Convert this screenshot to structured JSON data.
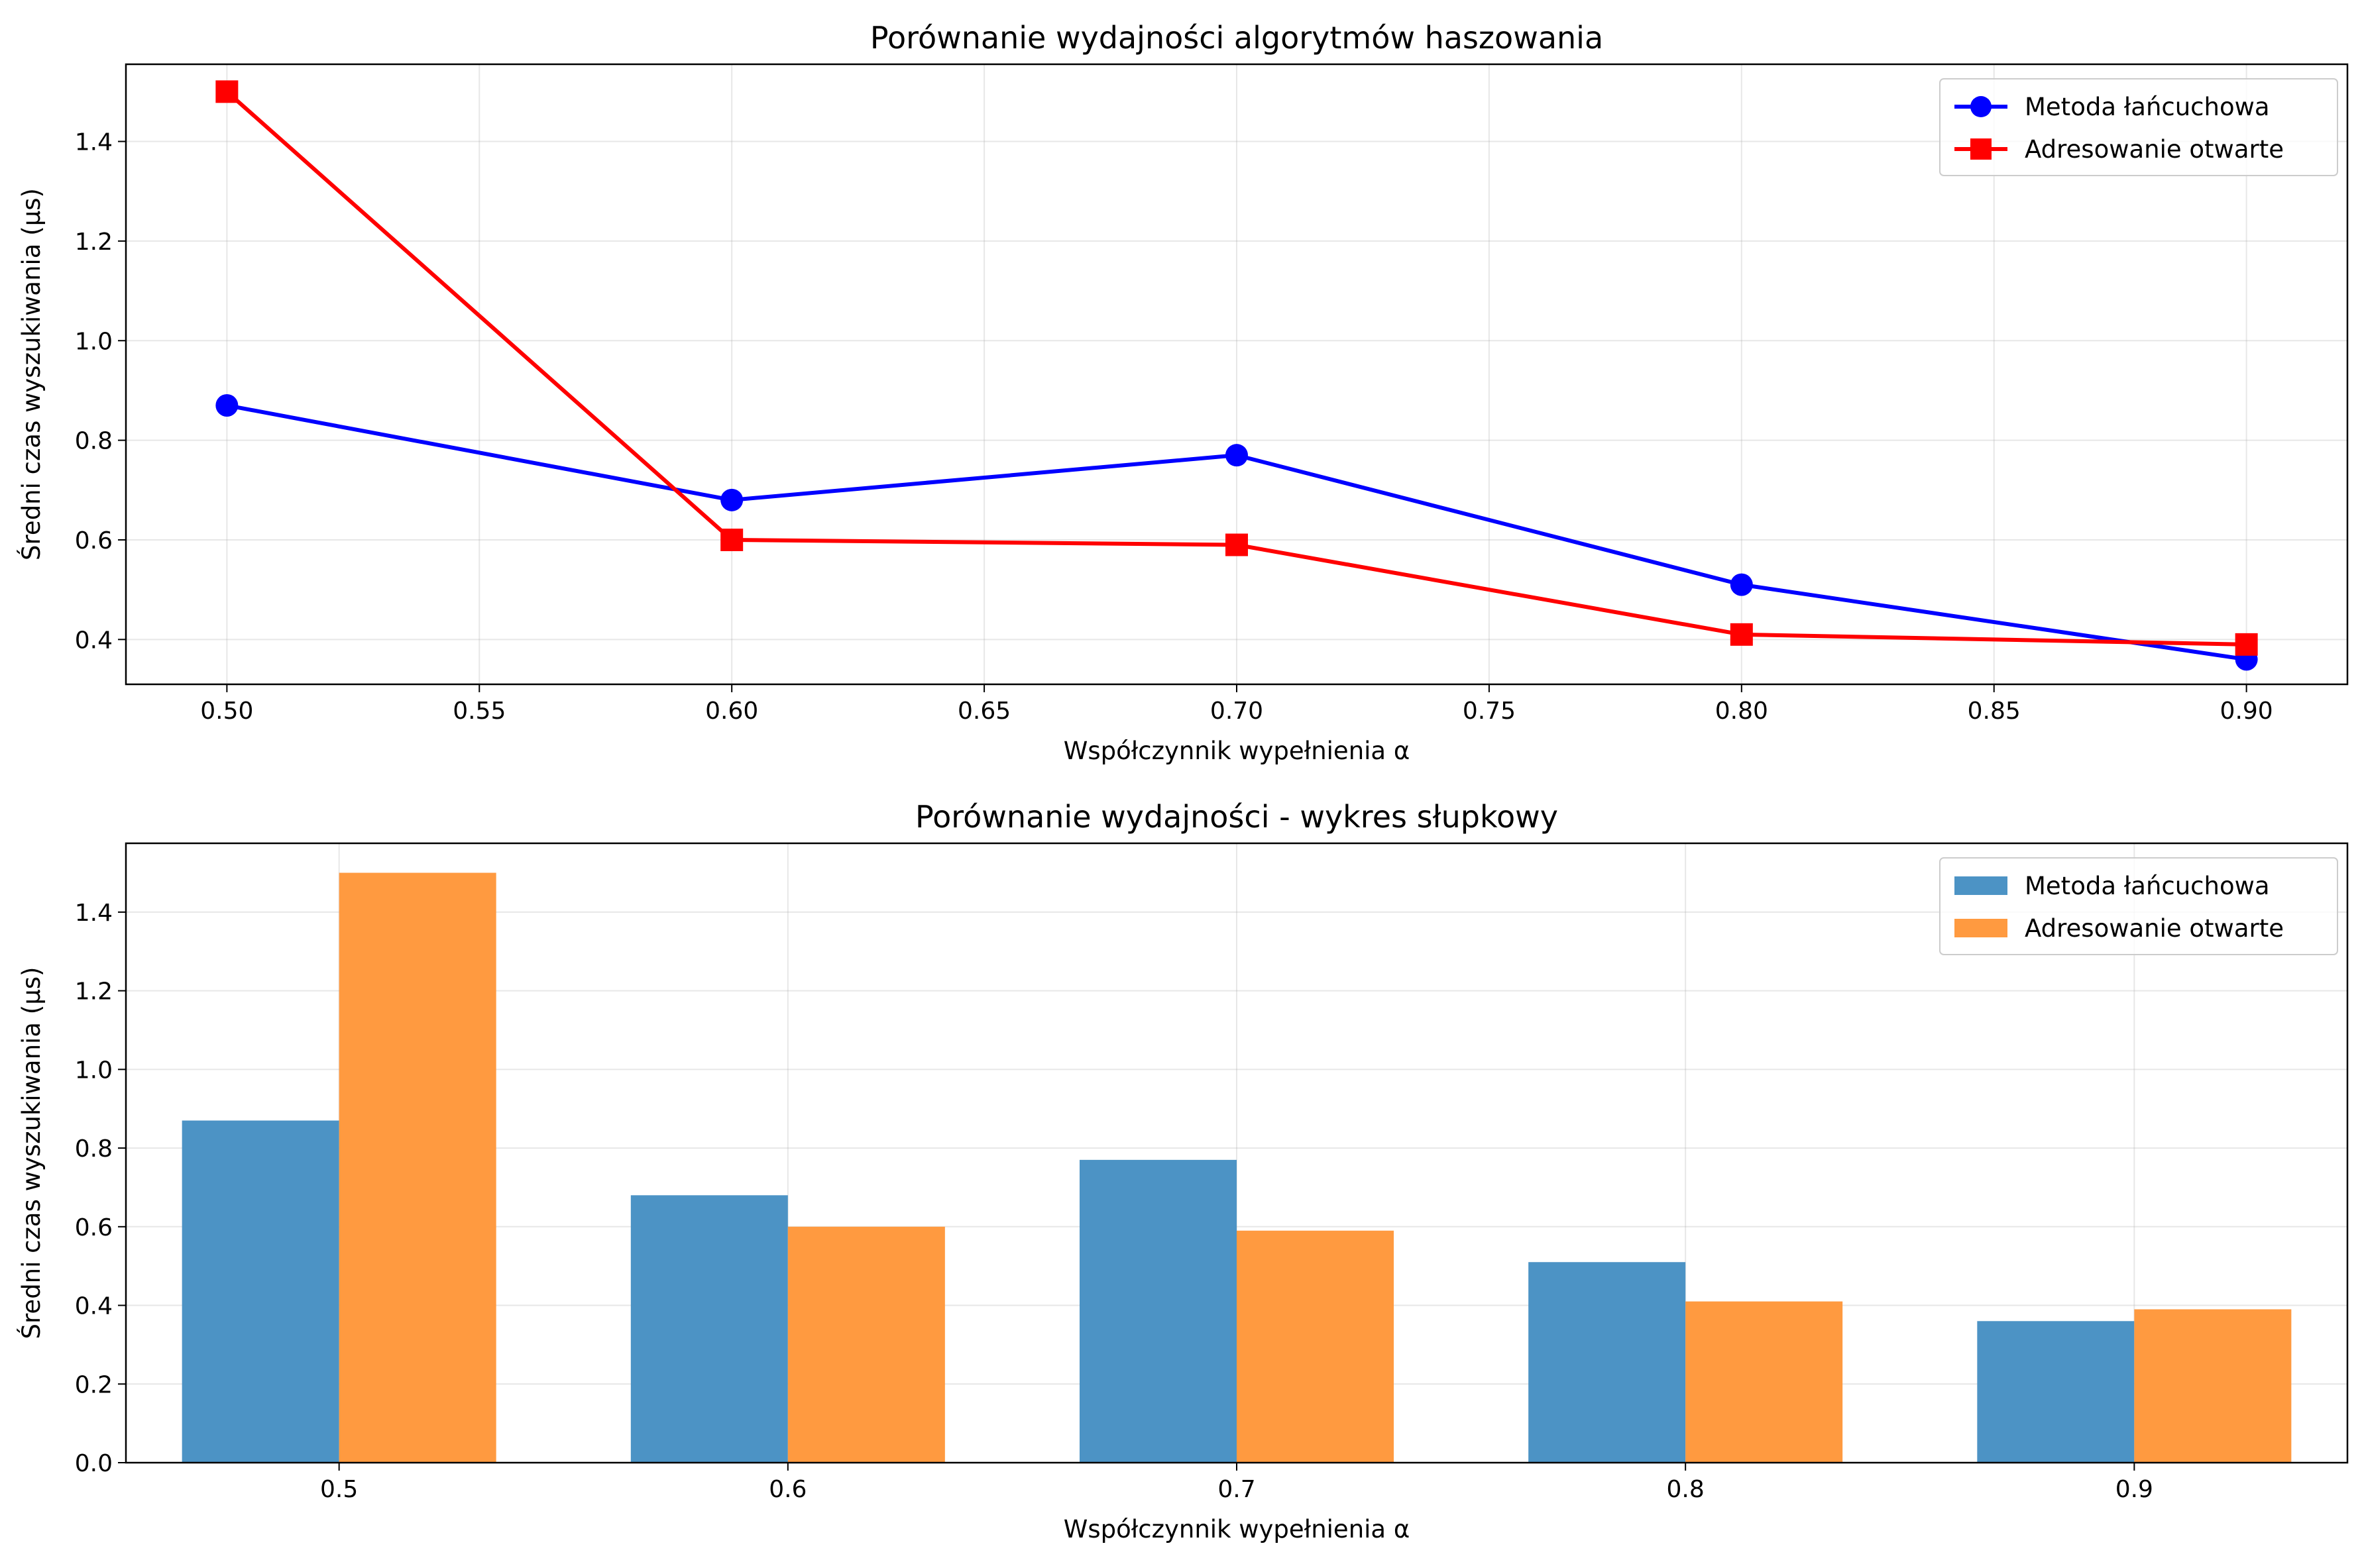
{
  "colors": {
    "line_series_1": "#0000ff",
    "line_series_2": "#ff0000",
    "bar_series_1": "#4c93c5",
    "bar_series_2": "#ff9a40"
  },
  "chart_data": [
    {
      "type": "line",
      "title": "Porównanie wydajności algorytmów haszowania",
      "xlabel": "Współczynnik wypełnienia α",
      "ylabel": "Średni czas wyszukiwania (μs)",
      "x": [
        0.5,
        0.6,
        0.7,
        0.8,
        0.9
      ],
      "xlim": [
        0.48,
        0.92
      ],
      "ylim": [
        0.31,
        1.555
      ],
      "xticks": [
        0.5,
        0.55,
        0.6,
        0.65,
        0.7,
        0.75,
        0.8,
        0.85,
        0.9
      ],
      "xtick_labels": [
        "0.50",
        "0.55",
        "0.60",
        "0.65",
        "0.70",
        "0.75",
        "0.80",
        "0.85",
        "0.90"
      ],
      "yticks": [
        0.4,
        0.6,
        0.8,
        1.0,
        1.2,
        1.4
      ],
      "ytick_labels": [
        "0.4",
        "0.6",
        "0.8",
        "1.0",
        "1.2",
        "1.4"
      ],
      "grid": true,
      "legend_position": "top-right",
      "series": [
        {
          "name": "Metoda łańcuchowa",
          "marker": "circle",
          "color": "#0000ff",
          "values": [
            0.87,
            0.68,
            0.77,
            0.51,
            0.36
          ]
        },
        {
          "name": "Adresowanie otwarte",
          "marker": "square",
          "color": "#ff0000",
          "values": [
            1.5,
            0.6,
            0.59,
            0.41,
            0.39
          ]
        }
      ]
    },
    {
      "type": "bar",
      "title": "Porównanie wydajności - wykres słupkowy",
      "xlabel": "Współczynnik wypełnienia α",
      "ylabel": "Średni czas wyszukiwania (μs)",
      "categories": [
        "0.5",
        "0.6",
        "0.7",
        "0.8",
        "0.9"
      ],
      "ylim": [
        0,
        1.575
      ],
      "yticks": [
        0,
        0.2,
        0.4,
        0.6,
        0.8,
        1.0,
        1.2,
        1.4
      ],
      "ytick_labels": [
        "0.0",
        "0.2",
        "0.4",
        "0.6",
        "0.8",
        "1.0",
        "1.2",
        "1.4"
      ],
      "grid": true,
      "legend_position": "top-right",
      "series": [
        {
          "name": "Metoda łańcuchowa",
          "color": "#4c93c5",
          "values": [
            0.87,
            0.68,
            0.77,
            0.51,
            0.36
          ]
        },
        {
          "name": "Adresowanie otwarte",
          "color": "#ff9a40",
          "values": [
            1.5,
            0.6,
            0.59,
            0.41,
            0.39
          ]
        }
      ]
    }
  ]
}
